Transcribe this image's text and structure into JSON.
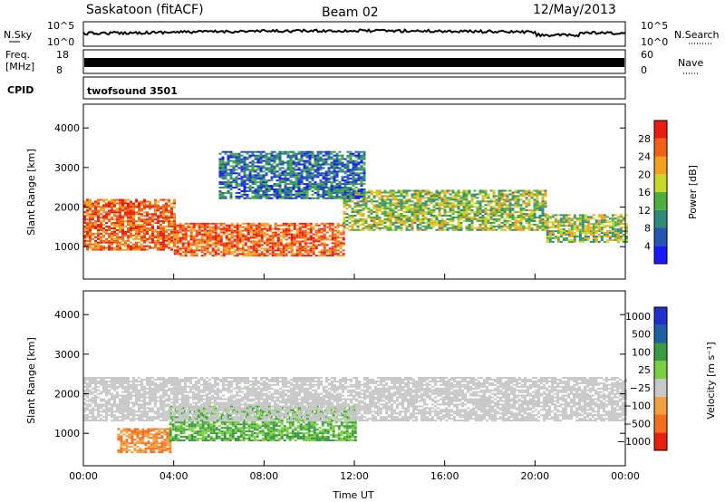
{
  "header": {
    "station": "Saskatoon (fitACF)",
    "beam": "Beam 02",
    "date": "12/May/2013"
  },
  "panels": {
    "nsky": {
      "label": "N.Sky",
      "tick_top": "10^5",
      "tick_bottom": "10^0",
      "right_label": "N.Search",
      "right_tick_top": "10^5",
      "right_tick_bottom": "10^0"
    },
    "freq": {
      "label_line1": "Freq.",
      "label_line2": "[MHz]",
      "tick_top": "18",
      "tick_bottom": "8",
      "right_label": "Nave",
      "right_tick_top": "60",
      "right_tick_bottom": "0"
    },
    "cpid": {
      "label": "CPID",
      "text": "twofsound 3501"
    }
  },
  "chart_data": [
    {
      "type": "heatmap",
      "ylabel": "Slant Range [km]",
      "xlabel": "Time UT",
      "x_ticks": [
        "00:00",
        "04:00",
        "08:00",
        "12:00",
        "16:00",
        "20:00",
        "00:00"
      ],
      "y_ticks": [
        1000,
        2000,
        3000,
        4000
      ],
      "ylim": [
        180,
        4600
      ],
      "xlim_hours": [
        0,
        24
      ],
      "colorbar": {
        "label": "Power [dB]",
        "ticks": [
          "4",
          "8",
          "12",
          "16",
          "20",
          "24",
          "28"
        ],
        "colors": [
          "#1a1aff",
          "#2555b0",
          "#2f8a7a",
          "#4cae3e",
          "#c8d828",
          "#f4a020",
          "#f06018",
          "#e81c10"
        ]
      },
      "bands": [
        {
          "t0": 0.0,
          "t1": 4.0,
          "r0": 900,
          "r1": 2200,
          "level": "high"
        },
        {
          "t0": 4.0,
          "t1": 11.5,
          "r0": 750,
          "r1": 1600,
          "level": "high"
        },
        {
          "t0": 11.5,
          "t1": 20.5,
          "r0": 1400,
          "r1": 2400,
          "level": "mid"
        },
        {
          "t0": 20.5,
          "t1": 24.0,
          "r0": 1100,
          "r1": 1800,
          "level": "mid"
        },
        {
          "t0": 6.0,
          "t1": 12.5,
          "r0": 2200,
          "r1": 3400,
          "level": "low"
        }
      ]
    },
    {
      "type": "heatmap",
      "ylabel": "Slant Range [km]",
      "xlabel": "Time UT",
      "x_ticks": [
        "00:00",
        "04:00",
        "08:00",
        "12:00",
        "16:00",
        "20:00",
        "00:00"
      ],
      "y_ticks": [
        1000,
        2000,
        3000,
        4000
      ],
      "ylim": [
        180,
        4600
      ],
      "xlim_hours": [
        0,
        24
      ],
      "colorbar": {
        "label": "Velocity [m s⁻¹]",
        "ticks": [
          "1000",
          "500",
          "100",
          "25",
          "−25",
          "−100",
          "−500",
          "−1000"
        ],
        "colors": [
          "#2030c8",
          "#2060a0",
          "#3a9a40",
          "#7ad040",
          "#c8c8c8",
          "#f0a040",
          "#f07020",
          "#e82010"
        ]
      },
      "bands": [
        {
          "t0": 1.5,
          "t1": 3.8,
          "r0": 500,
          "r1": 1100,
          "level": "neg"
        },
        {
          "t0": 3.8,
          "t1": 12.0,
          "r0": 800,
          "r1": 1700,
          "level": "pos"
        },
        {
          "t0": 0.0,
          "t1": 24.0,
          "r0": 1300,
          "r1": 2400,
          "level": "zero"
        }
      ]
    }
  ]
}
